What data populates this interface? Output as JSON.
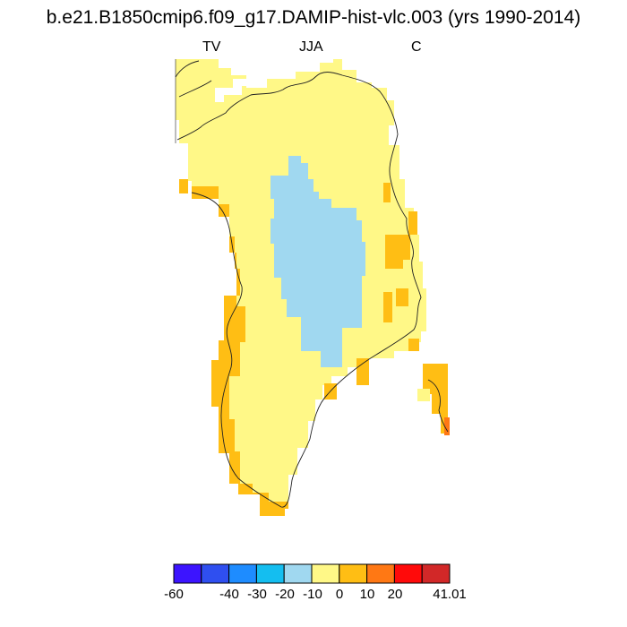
{
  "title": "b.e21.B1850cmip6.f09_g17.DAMIP-hist-vlc.003 (yrs 1990-2014)",
  "subtitles": {
    "left": "TV",
    "center": "JJA",
    "right": "C"
  },
  "colorbar": {
    "colors": [
      "#3c14ff",
      "#2f4ff0",
      "#1e8cff",
      "#14bef0",
      "#a0d8f0",
      "#fff887",
      "#ffbe14",
      "#ff7814",
      "#ff0a0a",
      "#d22828"
    ],
    "labels": [
      "-60",
      "-40",
      "-30",
      "-20",
      "-10",
      "0",
      "10",
      "20",
      "41.01"
    ]
  },
  "map_legend": {
    "land_fill": "#fff887",
    "coast_band_fill": "#ffbe14",
    "interior_fill": "#a0d8f0",
    "hot_spot_fill": "#ff7814"
  }
}
